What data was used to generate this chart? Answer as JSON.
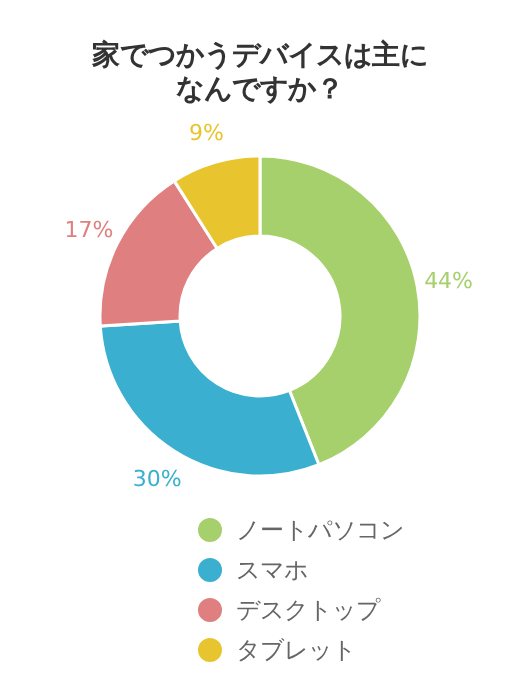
{
  "chart_data": {
    "type": "donut",
    "title": "家でつかうデバイスは主になんですか？",
    "categories": [
      "ノートパソコン",
      "スマホ",
      "デスクトップ",
      "タブレット"
    ],
    "values": [
      44,
      30,
      17,
      9
    ],
    "value_labels": [
      "44%",
      "30%",
      "17%",
      "9%"
    ],
    "colors": [
      "#a6d06b",
      "#3aafcf",
      "#e07f7f",
      "#e8c52e"
    ],
    "legend": "bottom"
  }
}
